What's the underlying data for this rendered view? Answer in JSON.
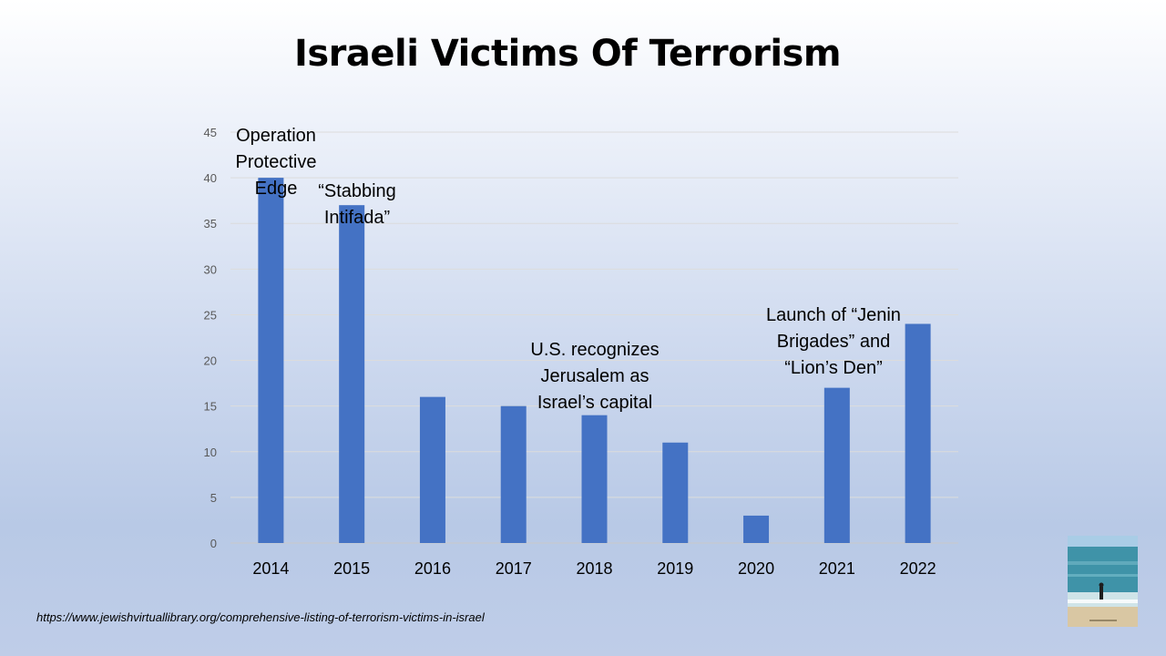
{
  "slide": {
    "title": "Israeli Victims Of Terrorism",
    "source": "https://www.jewishvirtuallibrary.org/comprehensive-listing-of-terrorism-victims-in-israel"
  },
  "chart_data": {
    "type": "bar",
    "title": "Israeli Victims Of Terrorism",
    "xlabel": "",
    "ylabel": "",
    "categories": [
      "2014",
      "2015",
      "2016",
      "2017",
      "2018",
      "2019",
      "2020",
      "2021",
      "2022"
    ],
    "values": [
      40,
      37,
      16,
      15,
      14,
      11,
      3,
      17,
      24
    ],
    "ylim": [
      0,
      45
    ],
    "yticks": [
      0,
      5,
      10,
      15,
      20,
      25,
      30,
      35,
      40,
      45
    ],
    "grid": true,
    "bar_color": "#4472C4",
    "annotations": [
      {
        "category": "2014",
        "lines": [
          "Operation",
          "Protective",
          "Edge"
        ]
      },
      {
        "category": "2015",
        "lines": [
          "“Stabbing",
          "Intifada”"
        ]
      },
      {
        "category": "2018",
        "lines": [
          "U.S. recognizes",
          "Jerusalem as",
          "Israel’s capital"
        ]
      },
      {
        "category": "2021",
        "lines": [
          "Launch of “Jenin",
          "Brigades” and",
          "“Lion’s Den”"
        ]
      }
    ]
  }
}
